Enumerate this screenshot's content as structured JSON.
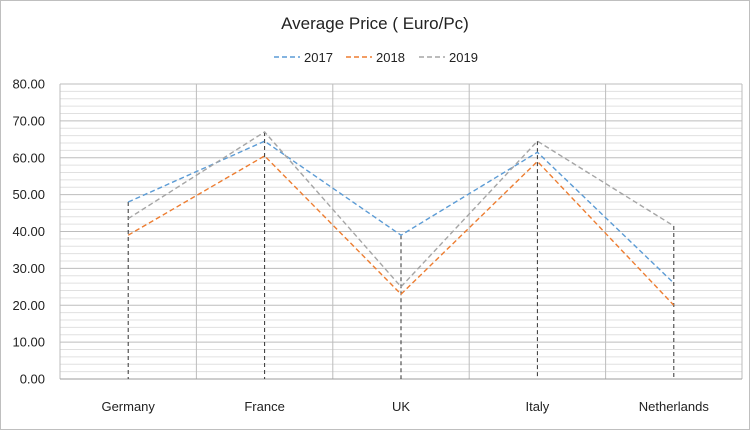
{
  "chart_data": {
    "type": "line",
    "title": "Average Price ( Euro/Pc)",
    "categories": [
      "Germany",
      "France",
      "UK",
      "Italy",
      "Netherlands"
    ],
    "series": [
      {
        "name": "2017",
        "color": "#5b9bd5",
        "values": [
          48.0,
          64.5,
          39.0,
          61.5,
          26.0
        ]
      },
      {
        "name": "2018",
        "color": "#ed7d31",
        "values": [
          39.0,
          60.5,
          23.0,
          59.0,
          20.0
        ]
      },
      {
        "name": "2019",
        "color": "#a5a5a5",
        "values": [
          43.5,
          67.0,
          25.0,
          64.5,
          41.5
        ]
      }
    ],
    "ylim": [
      0,
      80
    ],
    "yticks": [
      "0.00",
      "10.00",
      "20.00",
      "30.00",
      "40.00",
      "50.00",
      "60.00",
      "70.00",
      "80.00"
    ],
    "minor_step": 2,
    "legend_position": "top",
    "grid": true,
    "drop_lines": true,
    "line_style": "dashed"
  }
}
